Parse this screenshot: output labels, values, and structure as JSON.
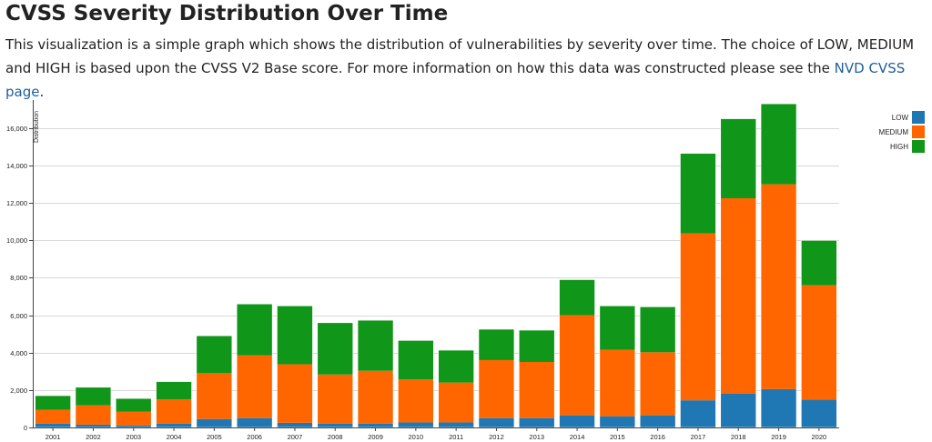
{
  "header": {
    "title": "CVSS Severity Distribution Over Time",
    "description_text": "This visualization is a simple graph which shows the distribution of vulnerabilities by severity over time. The choice of LOW, MEDIUM and HIGH is based upon the CVSS V2 Base score. For more information on how this data was constructed please see the ",
    "link_text": "NVD CVSS page",
    "description_end": "."
  },
  "chart_data": {
    "type": "bar",
    "stacked": true,
    "title": "",
    "xlabel": "",
    "ylabel": "Distribution",
    "categories": [
      "2001",
      "2002",
      "2003",
      "2004",
      "2005",
      "2006",
      "2007",
      "2008",
      "2009",
      "2010",
      "2011",
      "2012",
      "2013",
      "2014",
      "2015",
      "2016",
      "2017",
      "2018",
      "2019",
      "2020"
    ],
    "series": [
      {
        "name": "LOW",
        "color": "#1f77b4",
        "values": [
          200,
          150,
          100,
          200,
          450,
          500,
          250,
          200,
          200,
          270,
          270,
          500,
          500,
          650,
          600,
          650,
          1450,
          1800,
          2050,
          1480
        ]
      },
      {
        "name": "MEDIUM",
        "color": "#ff6600",
        "values": [
          750,
          1030,
          750,
          1300,
          2450,
          3350,
          3130,
          2630,
          2830,
          2300,
          2130,
          3100,
          3000,
          5350,
          3550,
          3370,
          8920,
          10450,
          10950,
          6120
        ]
      },
      {
        "name": "HIGH",
        "color": "#109618",
        "values": [
          750,
          970,
          700,
          950,
          2000,
          2750,
          3120,
          2770,
          2700,
          2080,
          1730,
          1650,
          1700,
          1900,
          2350,
          2430,
          4280,
          4250,
          4300,
          2400
        ]
      }
    ],
    "ylim": [
      0,
      17500
    ],
    "yticks": [
      0,
      2000,
      4000,
      6000,
      8000,
      10000,
      12000,
      14000,
      16000
    ],
    "ytick_labels": [
      "0",
      "2,000",
      "4,000",
      "6,000",
      "8,000",
      "10,000",
      "12,000",
      "14,000",
      "16,000"
    ],
    "grid": true,
    "legend_position": "top-right"
  }
}
